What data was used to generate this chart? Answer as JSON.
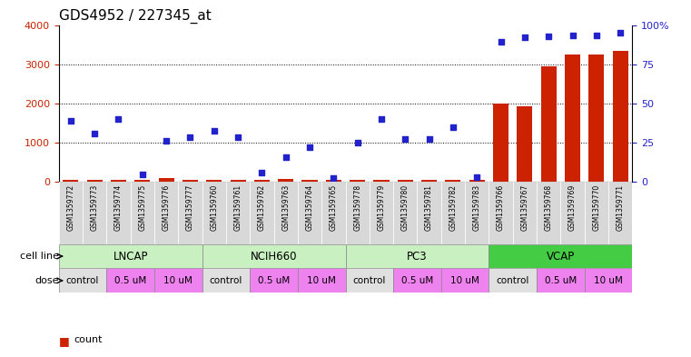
{
  "title": "GDS4952 / 227345_at",
  "samples": [
    "GSM1359772",
    "GSM1359773",
    "GSM1359774",
    "GSM1359775",
    "GSM1359776",
    "GSM1359777",
    "GSM1359760",
    "GSM1359761",
    "GSM1359762",
    "GSM1359763",
    "GSM1359764",
    "GSM1359765",
    "GSM1359778",
    "GSM1359779",
    "GSM1359780",
    "GSM1359781",
    "GSM1359782",
    "GSM1359783",
    "GSM1359766",
    "GSM1359767",
    "GSM1359768",
    "GSM1359769",
    "GSM1359770",
    "GSM1359771"
  ],
  "counts": [
    50,
    40,
    30,
    45,
    80,
    50,
    35,
    40,
    50,
    55,
    45,
    35,
    45,
    40,
    35,
    45,
    40,
    35,
    2000,
    1930,
    2950,
    3250,
    3250,
    3350
  ],
  "percentile_ranks": [
    1550,
    1230,
    1590,
    190,
    1040,
    1130,
    1290,
    1140,
    230,
    630,
    880,
    80,
    990,
    1590,
    1080,
    1090,
    1390,
    110,
    3580,
    3680,
    3700,
    3740,
    3740,
    3810
  ],
  "cell_lines": [
    "LNCAP",
    "NCIH660",
    "PC3",
    "VCAP"
  ],
  "cell_line_spans": [
    6,
    6,
    6,
    6
  ],
  "cell_line_colors": [
    "#c8f0c0",
    "#c8f0c0",
    "#c8f0c0",
    "#44cc44"
  ],
  "doses": [
    "control",
    "0.5 uM",
    "10 uM",
    "control",
    "0.5 uM",
    "10 uM",
    "control",
    "0.5 uM",
    "10 uM",
    "control",
    "0.5 uM",
    "10 uM"
  ],
  "dose_colors": [
    "#e8e8e8",
    "#ee82ee",
    "#ee82ee",
    "#e8e8e8",
    "#ee82ee",
    "#ee82ee",
    "#e8e8e8",
    "#ee82ee",
    "#ee82ee",
    "#e8e8e8",
    "#ee82ee",
    "#ee82ee"
  ],
  "dose_spans": [
    2,
    2,
    2,
    2,
    2,
    2,
    2,
    2,
    2,
    2,
    2,
    2
  ],
  "bar_color": "#cc2200",
  "scatter_color": "#2222cc",
  "left_ylim": [
    0,
    4000
  ],
  "right_ylim": [
    0,
    100
  ],
  "left_yticks": [
    0,
    1000,
    2000,
    3000,
    4000
  ],
  "right_yticks": [
    0,
    25,
    50,
    75,
    100
  ],
  "right_yticklabels": [
    "0",
    "25",
    "50",
    "75",
    "100%"
  ],
  "background_color": "#ffffff",
  "title_fontsize": 11,
  "sample_box_color": "#d8d8d8"
}
